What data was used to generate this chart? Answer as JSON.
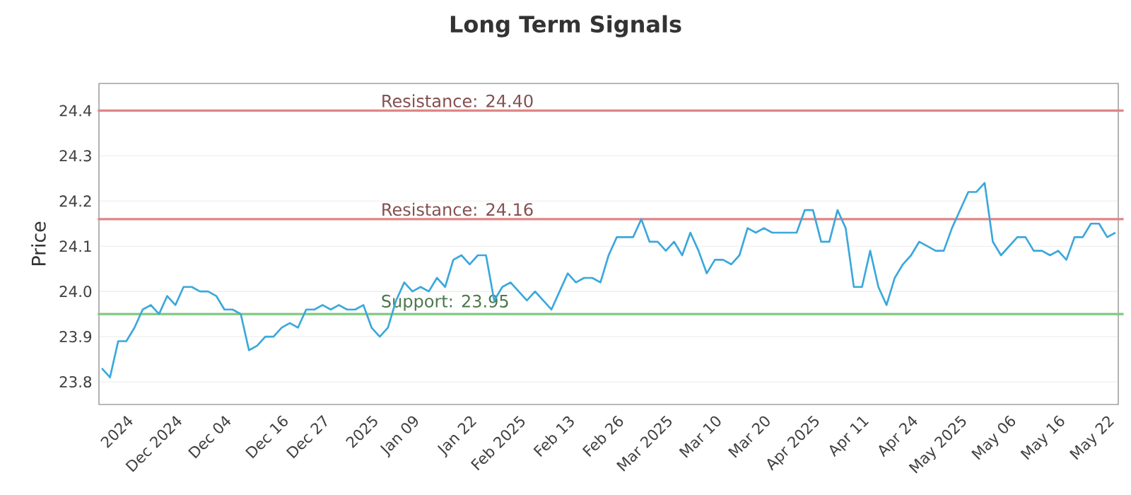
{
  "chart_data": {
    "type": "line",
    "title": "Long Term Signals",
    "ylabel": "Price",
    "categories": [
      null,
      null,
      null,
      "2024",
      null,
      null,
      null,
      null,
      null,
      "Dec 2024",
      null,
      null,
      null,
      null,
      null,
      "Dec 04",
      null,
      null,
      null,
      null,
      null,
      null,
      "Dec 16",
      null,
      null,
      null,
      null,
      "Dec 27",
      null,
      null,
      null,
      null,
      null,
      "2025",
      null,
      null,
      null,
      null,
      "Jan 09",
      null,
      null,
      null,
      null,
      null,
      null,
      "Jan 22",
      null,
      null,
      null,
      null,
      null,
      "Feb 2025",
      null,
      null,
      null,
      null,
      null,
      "Feb 13",
      null,
      null,
      null,
      null,
      null,
      "Feb 26",
      null,
      null,
      null,
      null,
      null,
      "Mar 2025",
      null,
      null,
      null,
      null,
      null,
      "Mar 10",
      null,
      null,
      null,
      null,
      null,
      "Mar 20",
      null,
      null,
      null,
      null,
      null,
      "Apr 2025",
      null,
      null,
      null,
      null,
      null,
      "Apr 11",
      null,
      null,
      null,
      null,
      null,
      "Apr 24",
      null,
      null,
      null,
      null,
      null,
      "May 2025",
      null,
      null,
      null,
      null,
      null,
      "May 06",
      null,
      null,
      null,
      null,
      null,
      "May 16",
      null,
      null,
      null,
      null,
      null,
      "May 22",
      null
    ],
    "series": [
      {
        "color": "#3aa8dc",
        "values": [
          23.83,
          23.81,
          23.89,
          23.89,
          23.92,
          23.96,
          23.97,
          23.95,
          23.99,
          23.97,
          24.01,
          24.01,
          24.0,
          24.0,
          23.99,
          23.96,
          23.96,
          23.95,
          23.87,
          23.88,
          23.9,
          23.9,
          23.92,
          23.93,
          23.92,
          23.96,
          23.96,
          23.97,
          23.96,
          23.97,
          23.96,
          23.96,
          23.97,
          23.92,
          23.9,
          23.92,
          23.98,
          24.02,
          24.0,
          24.01,
          24.0,
          24.03,
          24.01,
          24.07,
          24.08,
          24.06,
          24.08,
          24.08,
          23.98,
          24.01,
          24.02,
          24.0,
          23.98,
          24.0,
          23.98,
          23.96,
          24.0,
          24.04,
          24.02,
          24.03,
          24.03,
          24.02,
          24.08,
          24.12,
          24.12,
          24.12,
          24.16,
          24.11,
          24.11,
          24.09,
          24.11,
          24.08,
          24.13,
          24.09,
          24.04,
          24.07,
          24.07,
          24.06,
          24.08,
          24.14,
          24.13,
          24.14,
          24.13,
          24.13,
          24.13,
          24.13,
          24.18,
          24.18,
          24.11,
          24.11,
          24.18,
          24.14,
          24.01,
          24.01,
          24.09,
          24.01,
          23.97,
          24.03,
          24.06,
          24.08,
          24.11,
          24.1,
          24.09,
          24.09,
          24.14,
          24.18,
          24.22,
          24.22,
          24.24,
          24.11,
          24.08,
          24.1,
          24.12,
          24.12,
          24.09,
          24.09,
          24.08,
          24.09,
          24.07,
          24.12,
          24.12,
          24.15,
          24.15,
          24.12,
          24.13
        ]
      }
    ],
    "ylim": [
      23.75,
      24.46
    ],
    "yticks": [
      23.8,
      23.9,
      {
        "value": 24.0,
        "label": "24.0"
      },
      24.1,
      24.2,
      24.3,
      24.4
    ],
    "grid": "y",
    "ref_lines": [
      {
        "axis": "y",
        "value": 24.4,
        "label": "Resistance: 24.40",
        "color": "#e08585"
      },
      {
        "axis": "y",
        "value": 24.16,
        "label": "Resistance: 24.16",
        "color": "#e08585"
      },
      {
        "axis": "y",
        "value": 23.95,
        "label": "Support: 23.95",
        "color": "#80c880"
      }
    ]
  }
}
